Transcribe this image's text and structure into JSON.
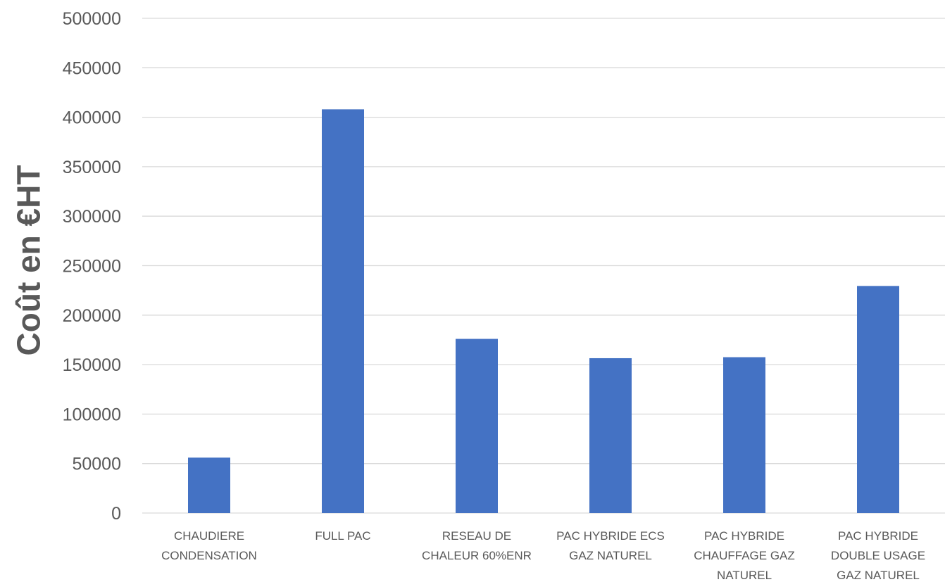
{
  "chart_data": {
    "type": "bar",
    "ylabel": "Coût en €HT",
    "ylim": [
      0,
      500000
    ],
    "yticks": [
      "0",
      "50000",
      "100000",
      "150000",
      "200000",
      "250000",
      "300000",
      "350000",
      "400000",
      "450000",
      "500000"
    ],
    "grid": true,
    "legend": "none",
    "bar_color": "#4472C4",
    "grid_color": "#D9D9D9",
    "text_color": "#595959",
    "categories": [
      [
        "CHAUDIERE",
        "CONDENSATION"
      ],
      [
        "FULL PAC"
      ],
      [
        "RESEAU DE",
        "CHALEUR 60%ENR"
      ],
      [
        "PAC HYBRIDE ECS",
        "GAZ NATUREL"
      ],
      [
        "PAC HYBRIDE",
        "CHAUFFAGE GAZ",
        "NATUREL"
      ],
      [
        "PAC HYBRIDE",
        "DOUBLE USAGE",
        "GAZ NATUREL"
      ]
    ],
    "values": [
      56000,
      408000,
      176000,
      156500,
      157500,
      229500
    ]
  }
}
